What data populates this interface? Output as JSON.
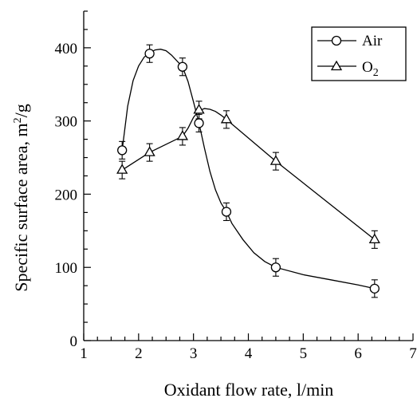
{
  "chart_data": {
    "type": "line",
    "xlabel": "Oxidant flow rate, l/min",
    "ylabel_main": "Specific surface area, m",
    "ylabel_sup": "2",
    "ylabel_tail": "/g",
    "xlim": [
      1,
      7
    ],
    "ylim": [
      0,
      450
    ],
    "x_ticks": [
      1,
      2,
      3,
      4,
      5,
      6,
      7
    ],
    "y_ticks": [
      0,
      100,
      200,
      300,
      400
    ],
    "x_tick_labels": [
      "1",
      "2",
      "3",
      "4",
      "5",
      "6",
      "7"
    ],
    "y_tick_labels": [
      "0",
      "100",
      "200",
      "300",
      "400"
    ],
    "grid": false,
    "legend_position": "top-right",
    "series": [
      {
        "name": "Air",
        "marker": "circle",
        "x": [
          1.7,
          2.2,
          2.8,
          3.1,
          3.6,
          4.5,
          6.3
        ],
        "y": [
          260,
          392,
          374,
          297,
          176,
          100,
          71
        ],
        "error": [
          12,
          12,
          12,
          12,
          12,
          12,
          12
        ],
        "curve_x": [
          1.7,
          1.8,
          1.9,
          2.0,
          2.1,
          2.2,
          2.3,
          2.4,
          2.5,
          2.6,
          2.7,
          2.8,
          2.9,
          3.0,
          3.1,
          3.2,
          3.3,
          3.4,
          3.5,
          3.6,
          3.7,
          3.9,
          4.1,
          4.3,
          4.5,
          5.0,
          5.5,
          6.0,
          6.3
        ],
        "curve_y": [
          260,
          320,
          355,
          375,
          387,
          393,
          397,
          398,
          396,
          390,
          382,
          374,
          354,
          326,
          297,
          263,
          231,
          206,
          188,
          176,
          160,
          138,
          120,
          108,
          100,
          90,
          83,
          76,
          71
        ]
      },
      {
        "name": "O2",
        "name_main": "O",
        "name_sub": "2",
        "marker": "triangle",
        "x": [
          1.7,
          2.2,
          2.8,
          3.1,
          3.6,
          4.5,
          6.3
        ],
        "y": [
          233,
          257,
          279,
          315,
          302,
          245,
          138
        ],
        "error": [
          12,
          12,
          12,
          12,
          12,
          12,
          12
        ],
        "curve_x": [
          1.7,
          2.2,
          2.8,
          2.9,
          3.0,
          3.1,
          3.2,
          3.3,
          3.4,
          3.5,
          3.6,
          4.5,
          6.3
        ],
        "curve_y": [
          233,
          257,
          279,
          290,
          305,
          314,
          317,
          316,
          313,
          308,
          302,
          245,
          138
        ]
      }
    ]
  }
}
